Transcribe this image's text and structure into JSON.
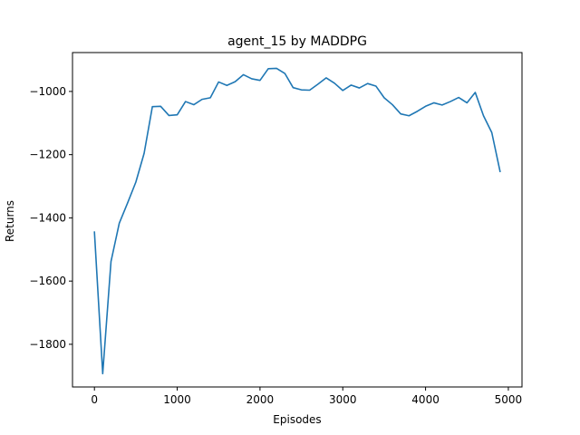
{
  "chart_data": {
    "type": "line",
    "title": "agent_15 by MADDPG",
    "xlabel": "Episodes",
    "ylabel": "Returns",
    "xlim": [
      -265,
      5165
    ],
    "ylim": [
      -1935,
      -877
    ],
    "xticks": [
      0,
      1000,
      2000,
      3000,
      4000,
      5000
    ],
    "yticks": [
      -1800,
      -1600,
      -1400,
      -1200,
      -1000
    ],
    "xtick_labels": [
      "0",
      "1000",
      "2000",
      "3000",
      "4000",
      "5000"
    ],
    "ytick_labels": [
      "−1800",
      "−1600",
      "−1400",
      "−1200",
      "−1000"
    ],
    "grid": false,
    "series": [
      {
        "color": "#1f77b4",
        "x": [
          0,
          100,
          200,
          300,
          400,
          500,
          600,
          700,
          800,
          900,
          1000,
          1100,
          1200,
          1300,
          1400,
          1500,
          1600,
          1700,
          1800,
          1900,
          2000,
          2100,
          2200,
          2300,
          2400,
          2500,
          2600,
          2700,
          2800,
          2900,
          3000,
          3100,
          3200,
          3300,
          3400,
          3500,
          3600,
          3700,
          3800,
          3900,
          4000,
          4100,
          4200,
          4300,
          4400,
          4500,
          4600,
          4700,
          4800,
          4900
        ],
        "y": [
          -1445,
          -1893,
          -1538,
          -1417,
          -1353,
          -1287,
          -1196,
          -1048,
          -1047,
          -1076,
          -1074,
          -1032,
          -1042,
          -1025,
          -1020,
          -970,
          -981,
          -969,
          -947,
          -960,
          -965,
          -928,
          -927,
          -943,
          -988,
          -995,
          -996,
          -977,
          -957,
          -974,
          -997,
          -980,
          -989,
          -975,
          -983,
          -1020,
          -1042,
          -1071,
          -1077,
          -1063,
          -1047,
          -1036,
          -1043,
          -1032,
          -1019,
          -1036,
          -1003,
          -1077,
          -1130,
          -1253
        ]
      }
    ]
  }
}
